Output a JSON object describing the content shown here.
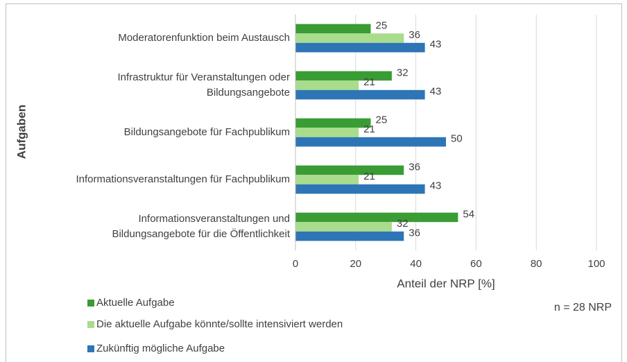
{
  "chart_data": {
    "type": "barh",
    "categories": [
      [
        "Moderatorenfunktion beim Austausch"
      ],
      [
        "Infrastruktur für Veranstaltungen oder",
        "Bildungsangebote"
      ],
      [
        "Bildungsangebote für Fachpublikum"
      ],
      [
        "Informationsveranstaltungen für Fachpublikum"
      ],
      [
        "Informationsveranstaltungen und",
        "Bildungsangebote für die Öffentlichkeit"
      ]
    ],
    "series": [
      {
        "name": "Aktuelle Aufgabe",
        "color": "#3a9c35",
        "values": [
          25,
          32,
          25,
          36,
          54
        ]
      },
      {
        "name": "Die aktuelle Aufgabe könnte/sollte intensiviert werden",
        "color": "#a9dc8c",
        "values": [
          36,
          21,
          21,
          21,
          32
        ]
      },
      {
        "name": "Zukünftig mögliche Aufgabe",
        "color": "#2e75b6",
        "values": [
          43,
          43,
          50,
          43,
          36
        ]
      }
    ],
    "xlim": [
      0,
      100
    ],
    "xticks": [
      0,
      20,
      40,
      60,
      80,
      100
    ],
    "grid": true,
    "xlabel": "Anteil der NRP [%]",
    "ylabel": "Aufgaben",
    "annotation": "n = 28 NRP"
  }
}
